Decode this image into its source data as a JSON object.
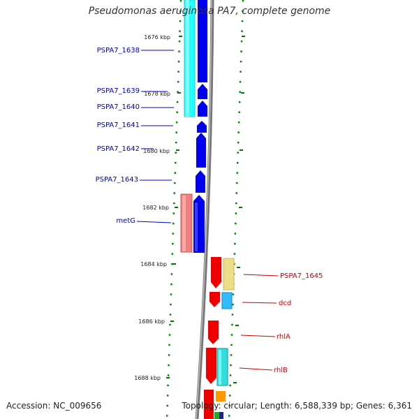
{
  "title": "Pseudomonas aeruginosa PA7, complete genome",
  "footer": {
    "accession": "Accession: NC_009656",
    "topology": "Topology: circular; Length: 6,588,339 bp; Genes: 6,361"
  },
  "ticks": [
    "1676 kbp",
    "1678 kbp",
    "1680 kbp",
    "1682 kbp",
    "1684 kbp",
    "1686 kbp",
    "1688 kbp"
  ],
  "genes_left": [
    "PSPA7_1638",
    "PSPA7_1639",
    "PSPA7_1640",
    "PSPA7_1641",
    "PSPA7_1642",
    "PSPA7_1643",
    "metG"
  ],
  "genes_right": [
    "PSPA7_1645",
    "dcd",
    "rhlA",
    "rhlB"
  ],
  "colors": {
    "forward_label": "#0000cc",
    "reverse_label": "#cc0000",
    "backbone": "#888888",
    "tick": "#007700",
    "cds_blue": "#0000ee",
    "cds_red": "#ee0000",
    "cyan": "#33ffff",
    "pink": "#ee7777",
    "khaki": "#eedd88",
    "sky": "#33bbff",
    "teal": "#33dddd",
    "orange": "#ff9900",
    "green": "#33aa33"
  }
}
